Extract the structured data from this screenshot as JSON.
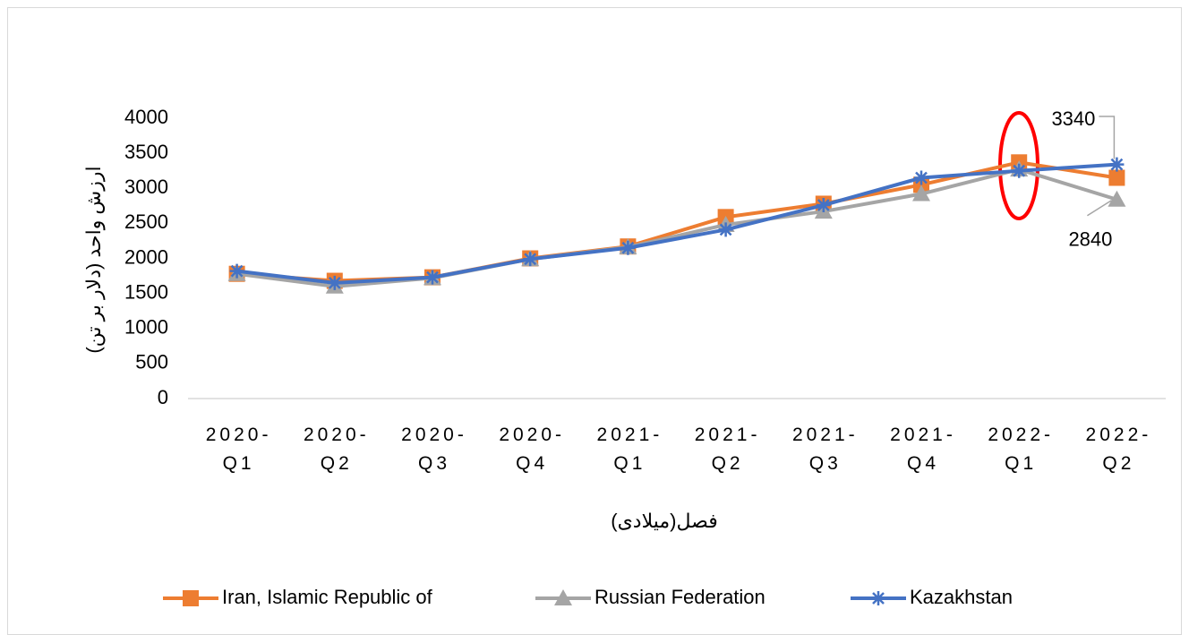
{
  "chart_data": {
    "type": "line",
    "y_label": "ارزش واحد (دلار بر تن)",
    "x_label": "فصل(میلادی)",
    "categories": [
      "2020-Q1",
      "2020-Q2",
      "2020-Q3",
      "2020-Q4",
      "2021-Q1",
      "2021-Q2",
      "2021-Q3",
      "2021-Q4",
      "2022-Q1",
      "2022-Q2"
    ],
    "series": [
      {
        "name": "Iran, Islamic Republic of",
        "color": "#ed7d31",
        "marker": "square",
        "values": [
          1780,
          1680,
          1730,
          2000,
          2170,
          2590,
          2780,
          3050,
          3370,
          3150
        ]
      },
      {
        "name": "Russian Federation",
        "color": "#a5a5a5",
        "marker": "triangle",
        "values": [
          1780,
          1600,
          1720,
          1990,
          2160,
          2480,
          2670,
          2920,
          3270,
          2840
        ],
        "value_labels": [
          null,
          null,
          null,
          null,
          null,
          null,
          null,
          null,
          null,
          "2840"
        ]
      },
      {
        "name": "Kazakhstan",
        "color": "#4472c4",
        "marker": "star",
        "values": [
          1820,
          1650,
          1730,
          1990,
          2150,
          2410,
          2760,
          3150,
          3250,
          3340
        ],
        "value_labels": [
          null,
          null,
          null,
          null,
          null,
          null,
          null,
          null,
          null,
          "3340"
        ]
      }
    ],
    "ylim": [
      0,
      4000
    ],
    "yticks": [
      0,
      500,
      1000,
      1500,
      2000,
      2500,
      3000,
      3500,
      4000
    ],
    "grid": false,
    "legend": "bottom"
  }
}
